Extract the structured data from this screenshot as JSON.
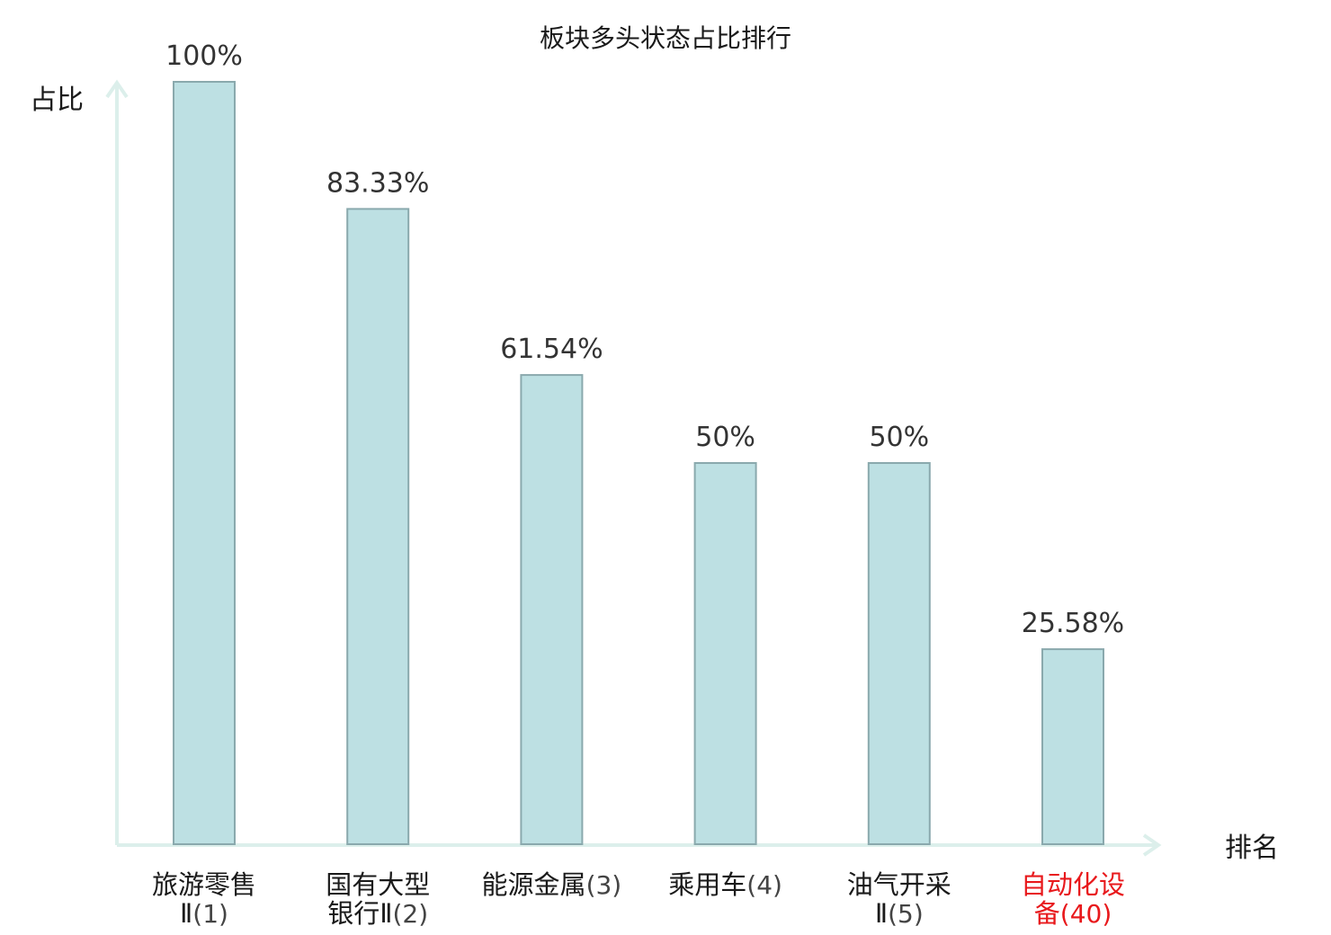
{
  "chart_data": {
    "type": "bar",
    "title": "板块多头状态占比排行",
    "ylabel": "占比",
    "xlabel": "排名",
    "ylim": [
      0,
      100
    ],
    "grid": false,
    "legend": "none",
    "categories": [
      {
        "name": "旅游零售Ⅱ",
        "rank": "(1)",
        "highlight": false
      },
      {
        "name": "国有大型银行Ⅱ",
        "rank": "(2)",
        "highlight": false
      },
      {
        "name": "能源金属",
        "rank": "(3)",
        "highlight": false
      },
      {
        "name": "乘用车",
        "rank": "(4)",
        "highlight": false
      },
      {
        "name": "油气开采Ⅱ",
        "rank": "(5)",
        "highlight": false
      },
      {
        "name": "自动化设备",
        "rank": "(40)",
        "highlight": true
      }
    ],
    "values": [
      100,
      83.33,
      61.54,
      50,
      50,
      25.58
    ],
    "value_labels": [
      "100%",
      "83.33%",
      "61.54%",
      "50%",
      "50%",
      "25.58%"
    ],
    "colors": {
      "bar_fill": "#bde0e3",
      "bar_stroke": "#8aa9ad",
      "axis": "#dcefeb",
      "text": "#1a1a1a",
      "rank_text": "#444444",
      "highlight": "#e8191c"
    }
  }
}
